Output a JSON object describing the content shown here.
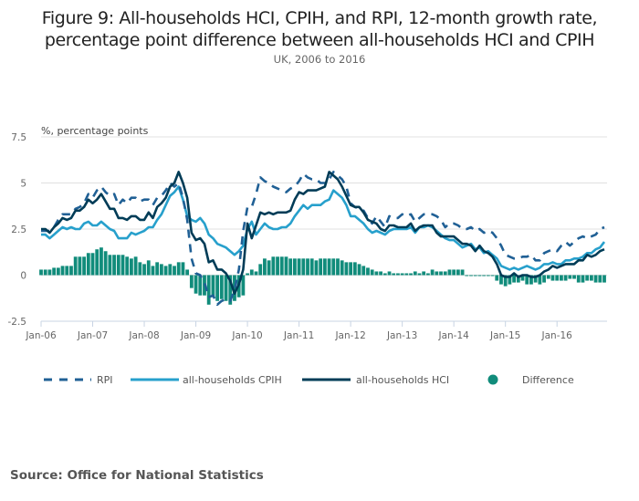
{
  "header": {
    "title_line1": "Figure 9: All-households HCI, CPIH, and RPI, 12-month growth rate,",
    "title_line2": "percentage point difference between all-households HCI and CPIH",
    "subtitle": "UK, 2006 to 2016"
  },
  "footer": {
    "source": "Source: Office for National Statistics"
  },
  "colors": {
    "rpi": "#206095",
    "cpih": "#27a0cc",
    "hci": "#003c57",
    "difference": "#118c7b",
    "grid": "#e0e0e0",
    "axis": "#c8d4e3"
  },
  "chart_data": {
    "type": "line",
    "title": "Figure 9: All-households HCI, CPIH, and RPI, 12-month growth rate, percentage point difference between all-households HCI and CPIH",
    "subtitle": "UK, 2006 to 2016",
    "ylabel": "%, percentage points",
    "xlabel": "",
    "ylim": [
      -2.5,
      7.5
    ],
    "yticks": [
      7.5,
      5,
      2.5,
      0,
      -2.5
    ],
    "ytick_labels": [
      "7.5",
      "5",
      "2.5",
      "0",
      "-2.5"
    ],
    "x_start": "Jan-06",
    "x_frequency": "monthly",
    "n_months": 132,
    "xtick_labels": [
      "Jan-06",
      "Jan-07",
      "Jan-08",
      "Jan-09",
      "Jan-10",
      "Jan-11",
      "Jan-12",
      "Jan-13",
      "Jan-14",
      "Jan-15",
      "Jan-16"
    ],
    "grid": true,
    "legend_position": "bottom",
    "legend": [
      "RPI",
      "all-households CPIH",
      "all-households HCI",
      "Difference"
    ],
    "series": [
      {
        "name": "RPI",
        "style": "dashed-line",
        "values": [
          2.4,
          2.4,
          2.4,
          2.6,
          3.0,
          3.3,
          3.3,
          3.3,
          3.6,
          3.7,
          3.9,
          4.4,
          4.2,
          4.6,
          4.8,
          4.5,
          4.3,
          4.4,
          3.8,
          4.1,
          3.9,
          4.2,
          4.2,
          4.0,
          4.1,
          4.1,
          3.8,
          4.2,
          4.3,
          4.6,
          5.0,
          4.8,
          5.0,
          4.2,
          3.0,
          0.9,
          0.1,
          0.0,
          -0.4,
          -1.2,
          -1.1,
          -1.6,
          -1.4,
          -1.3,
          -1.4,
          -0.8,
          0.3,
          2.4,
          3.7,
          3.7,
          4.4,
          5.3,
          5.1,
          5.0,
          4.8,
          4.7,
          4.6,
          4.5,
          4.7,
          4.8,
          5.1,
          5.5,
          5.3,
          5.2,
          5.2,
          5.0,
          5.0,
          5.2,
          5.6,
          5.4,
          5.2,
          4.8,
          3.9,
          3.7,
          3.6,
          3.5,
          3.1,
          2.8,
          3.2,
          2.9,
          2.6,
          3.2,
          3.1,
          3.1,
          3.3,
          3.2,
          3.3,
          2.9,
          3.1,
          3.3,
          3.3,
          3.3,
          3.2,
          3.0,
          2.6,
          2.8,
          2.8,
          2.7,
          2.5,
          2.5,
          2.6,
          2.4,
          2.5,
          2.3,
          2.4,
          2.3,
          2.0,
          1.6,
          1.1,
          1.0,
          0.9,
          0.9,
          1.0,
          1.0,
          1.1,
          0.8,
          0.8,
          1.2,
          1.3,
          1.4,
          1.3,
          1.6,
          1.8,
          1.6,
          1.8,
          2.0,
          2.1,
          2.0,
          2.1,
          2.2,
          2.5,
          2.6
        ]
      },
      {
        "name": "all-households CPIH",
        "style": "solid-line",
        "values": [
          2.2,
          2.2,
          2.0,
          2.2,
          2.4,
          2.6,
          2.5,
          2.6,
          2.5,
          2.5,
          2.8,
          2.9,
          2.7,
          2.7,
          2.9,
          2.7,
          2.5,
          2.4,
          2.0,
          2.0,
          2.0,
          2.3,
          2.2,
          2.3,
          2.4,
          2.6,
          2.6,
          3.0,
          3.3,
          3.8,
          4.3,
          4.5,
          4.8,
          4.1,
          3.2,
          3.0,
          2.9,
          3.1,
          2.8,
          2.2,
          2.0,
          1.7,
          1.6,
          1.5,
          1.3,
          1.1,
          1.3,
          1.6,
          2.5,
          2.9,
          2.2,
          2.5,
          2.8,
          2.6,
          2.5,
          2.5,
          2.6,
          2.6,
          2.8,
          3.2,
          3.5,
          3.8,
          3.6,
          3.8,
          3.8,
          3.8,
          4.0,
          4.1,
          4.6,
          4.4,
          4.2,
          3.8,
          3.2,
          3.2,
          3.0,
          2.8,
          2.5,
          2.3,
          2.4,
          2.3,
          2.2,
          2.4,
          2.5,
          2.5,
          2.5,
          2.5,
          2.6,
          2.3,
          2.6,
          2.6,
          2.7,
          2.6,
          2.4,
          2.2,
          2.0,
          1.9,
          1.9,
          1.7,
          1.5,
          1.6,
          1.7,
          1.4,
          1.5,
          1.2,
          1.3,
          1.1,
          0.9,
          0.5,
          0.4,
          0.3,
          0.4,
          0.3,
          0.4,
          0.5,
          0.4,
          0.3,
          0.4,
          0.6,
          0.6,
          0.7,
          0.6,
          0.6,
          0.8,
          0.8,
          0.9,
          0.9,
          1.0,
          1.2,
          1.2,
          1.4,
          1.5,
          1.8
        ]
      },
      {
        "name": "all-households HCI",
        "style": "solid-line",
        "values": [
          2.5,
          2.5,
          2.3,
          2.6,
          2.8,
          3.1,
          3.0,
          3.1,
          3.5,
          3.5,
          3.7,
          4.1,
          3.9,
          4.1,
          4.4,
          4.0,
          3.6,
          3.6,
          3.1,
          3.1,
          3.0,
          3.2,
          3.2,
          3.0,
          3.0,
          3.4,
          3.1,
          3.7,
          3.9,
          4.2,
          4.8,
          5.0,
          5.6,
          5.0,
          4.2,
          2.3,
          1.9,
          2.0,
          1.7,
          0.7,
          0.8,
          0.3,
          0.3,
          0.1,
          -0.3,
          -1.0,
          -0.5,
          0.3,
          2.8,
          2.0,
          2.7,
          3.4,
          3.3,
          3.4,
          3.3,
          3.4,
          3.4,
          3.4,
          3.5,
          4.1,
          4.5,
          4.4,
          4.6,
          4.6,
          4.6,
          4.7,
          4.8,
          5.6,
          5.4,
          5.2,
          4.8,
          4.3,
          3.8,
          3.7,
          3.7,
          3.4,
          3.0,
          2.9,
          2.8,
          2.5,
          2.4,
          2.7,
          2.7,
          2.6,
          2.6,
          2.6,
          2.8,
          2.4,
          2.6,
          2.7,
          2.7,
          2.7,
          2.3,
          2.1,
          2.1,
          2.1,
          2.1,
          1.9,
          1.7,
          1.7,
          1.6,
          1.3,
          1.6,
          1.3,
          1.2,
          1.0,
          0.6,
          0.0,
          -0.1,
          -0.1,
          0.1,
          -0.1,
          0.0,
          0.0,
          -0.1,
          -0.1,
          0.0,
          0.2,
          0.3,
          0.5,
          0.4,
          0.5,
          0.6,
          0.6,
          0.6,
          0.8,
          0.8,
          1.1,
          1.0,
          1.1,
          1.3,
          1.4
        ]
      },
      {
        "name": "Difference",
        "style": "bar",
        "values": [
          0.3,
          0.3,
          0.3,
          0.4,
          0.4,
          0.5,
          0.5,
          0.5,
          1.0,
          1.0,
          1.0,
          1.2,
          1.2,
          1.4,
          1.5,
          1.3,
          1.1,
          1.1,
          1.1,
          1.1,
          1.0,
          0.9,
          1.0,
          0.7,
          0.6,
          0.8,
          0.5,
          0.7,
          0.6,
          0.5,
          0.6,
          0.5,
          0.7,
          0.7,
          0.3,
          -0.7,
          -1.0,
          -1.1,
          -1.1,
          -1.6,
          -1.2,
          -1.4,
          -1.3,
          -1.4,
          -1.6,
          -1.4,
          -1.2,
          -1.1,
          0.1,
          0.3,
          0.2,
          0.6,
          0.9,
          0.8,
          1.0,
          1.0,
          1.0,
          1.0,
          0.9,
          0.9,
          0.9,
          0.9,
          0.9,
          0.9,
          0.8,
          0.9,
          0.9,
          0.9,
          0.9,
          0.9,
          0.8,
          0.7,
          0.7,
          0.7,
          0.6,
          0.5,
          0.4,
          0.3,
          0.2,
          0.2,
          0.1,
          0.2,
          0.1,
          0.1,
          0.1,
          0.1,
          0.1,
          0.2,
          0.1,
          0.2,
          0.1,
          0.3,
          0.2,
          0.2,
          0.2,
          0.3,
          0.3,
          0.3,
          0.3,
          0.0,
          0.0,
          -0.05,
          -0.05,
          -0.05,
          0.0,
          -0.05,
          -0.3,
          -0.5,
          -0.6,
          -0.5,
          -0.4,
          -0.4,
          -0.3,
          -0.5,
          -0.5,
          -0.4,
          -0.5,
          -0.4,
          -0.2,
          -0.3,
          -0.3,
          -0.3,
          -0.3,
          -0.2,
          -0.2,
          -0.4,
          -0.4,
          -0.3,
          -0.3,
          -0.4,
          -0.4,
          -0.4
        ]
      }
    ]
  }
}
